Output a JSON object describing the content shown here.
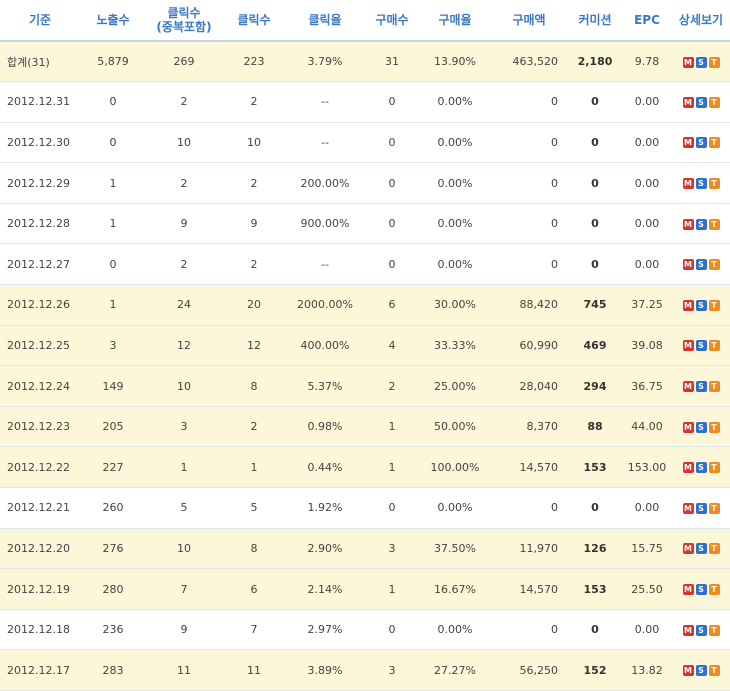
{
  "headers": [
    "기준",
    "노출수",
    "클릭수\n(중복포함)",
    "클릭수",
    "클릭율",
    "구매수",
    "구매율",
    "구매액",
    "커미션",
    "EPC",
    "상세보기"
  ],
  "rows": [
    {
      "date": "합계(31)",
      "imp": "5,879",
      "clk_dup": "269",
      "clk": "223",
      "ctr": "3.79%",
      "buy": "31",
      "cvr": "13.90%",
      "amount": "463,520",
      "comm": "2,180",
      "epc": "9.78",
      "hl": true
    },
    {
      "date": "2012.12.31",
      "imp": "0",
      "clk_dup": "2",
      "clk": "2",
      "ctr": "--",
      "buy": "0",
      "cvr": "0.00%",
      "amount": "0",
      "comm": "0",
      "epc": "0.00",
      "hl": false
    },
    {
      "date": "2012.12.30",
      "imp": "0",
      "clk_dup": "10",
      "clk": "10",
      "ctr": "--",
      "buy": "0",
      "cvr": "0.00%",
      "amount": "0",
      "comm": "0",
      "epc": "0.00",
      "hl": false
    },
    {
      "date": "2012.12.29",
      "imp": "1",
      "clk_dup": "2",
      "clk": "2",
      "ctr": "200.00%",
      "buy": "0",
      "cvr": "0.00%",
      "amount": "0",
      "comm": "0",
      "epc": "0.00",
      "hl": false
    },
    {
      "date": "2012.12.28",
      "imp": "1",
      "clk_dup": "9",
      "clk": "9",
      "ctr": "900.00%",
      "buy": "0",
      "cvr": "0.00%",
      "amount": "0",
      "comm": "0",
      "epc": "0.00",
      "hl": false
    },
    {
      "date": "2012.12.27",
      "imp": "0",
      "clk_dup": "2",
      "clk": "2",
      "ctr": "--",
      "buy": "0",
      "cvr": "0.00%",
      "amount": "0",
      "comm": "0",
      "epc": "0.00",
      "hl": false
    },
    {
      "date": "2012.12.26",
      "imp": "1",
      "clk_dup": "24",
      "clk": "20",
      "ctr": "2000.00%",
      "buy": "6",
      "cvr": "30.00%",
      "amount": "88,420",
      "comm": "745",
      "epc": "37.25",
      "hl": true
    },
    {
      "date": "2012.12.25",
      "imp": "3",
      "clk_dup": "12",
      "clk": "12",
      "ctr": "400.00%",
      "buy": "4",
      "cvr": "33.33%",
      "amount": "60,990",
      "comm": "469",
      "epc": "39.08",
      "hl": true
    },
    {
      "date": "2012.12.24",
      "imp": "149",
      "clk_dup": "10",
      "clk": "8",
      "ctr": "5.37%",
      "buy": "2",
      "cvr": "25.00%",
      "amount": "28,040",
      "comm": "294",
      "epc": "36.75",
      "hl": true
    },
    {
      "date": "2012.12.23",
      "imp": "205",
      "clk_dup": "3",
      "clk": "2",
      "ctr": "0.98%",
      "buy": "1",
      "cvr": "50.00%",
      "amount": "8,370",
      "comm": "88",
      "epc": "44.00",
      "hl": true
    },
    {
      "date": "2012.12.22",
      "imp": "227",
      "clk_dup": "1",
      "clk": "1",
      "ctr": "0.44%",
      "buy": "1",
      "cvr": "100.00%",
      "amount": "14,570",
      "comm": "153",
      "epc": "153.00",
      "hl": true
    },
    {
      "date": "2012.12.21",
      "imp": "260",
      "clk_dup": "5",
      "clk": "5",
      "ctr": "1.92%",
      "buy": "0",
      "cvr": "0.00%",
      "amount": "0",
      "comm": "0",
      "epc": "0.00",
      "hl": false
    },
    {
      "date": "2012.12.20",
      "imp": "276",
      "clk_dup": "10",
      "clk": "8",
      "ctr": "2.90%",
      "buy": "3",
      "cvr": "37.50%",
      "amount": "11,970",
      "comm": "126",
      "epc": "15.75",
      "hl": true
    },
    {
      "date": "2012.12.19",
      "imp": "280",
      "clk_dup": "7",
      "clk": "6",
      "ctr": "2.14%",
      "buy": "1",
      "cvr": "16.67%",
      "amount": "14,570",
      "comm": "153",
      "epc": "25.50",
      "hl": true
    },
    {
      "date": "2012.12.18",
      "imp": "236",
      "clk_dup": "9",
      "clk": "7",
      "ctr": "2.97%",
      "buy": "0",
      "cvr": "0.00%",
      "amount": "0",
      "comm": "0",
      "epc": "0.00",
      "hl": false
    },
    {
      "date": "2012.12.17",
      "imp": "283",
      "clk_dup": "11",
      "clk": "11",
      "ctr": "3.89%",
      "buy": "3",
      "cvr": "27.27%",
      "amount": "56,250",
      "comm": "152",
      "epc": "13.82",
      "hl": true
    }
  ],
  "icons": [
    {
      "name": "m-icon",
      "label": "M"
    },
    {
      "name": "s-icon",
      "label": "S"
    },
    {
      "name": "t-icon",
      "label": "T"
    }
  ],
  "colors": {
    "header_text": "#3a78c8",
    "highlight_row": "#fdf7d9",
    "icon_m": "#d9342b",
    "icon_s": "#2f6fcf",
    "icon_t": "#f08a1c"
  }
}
